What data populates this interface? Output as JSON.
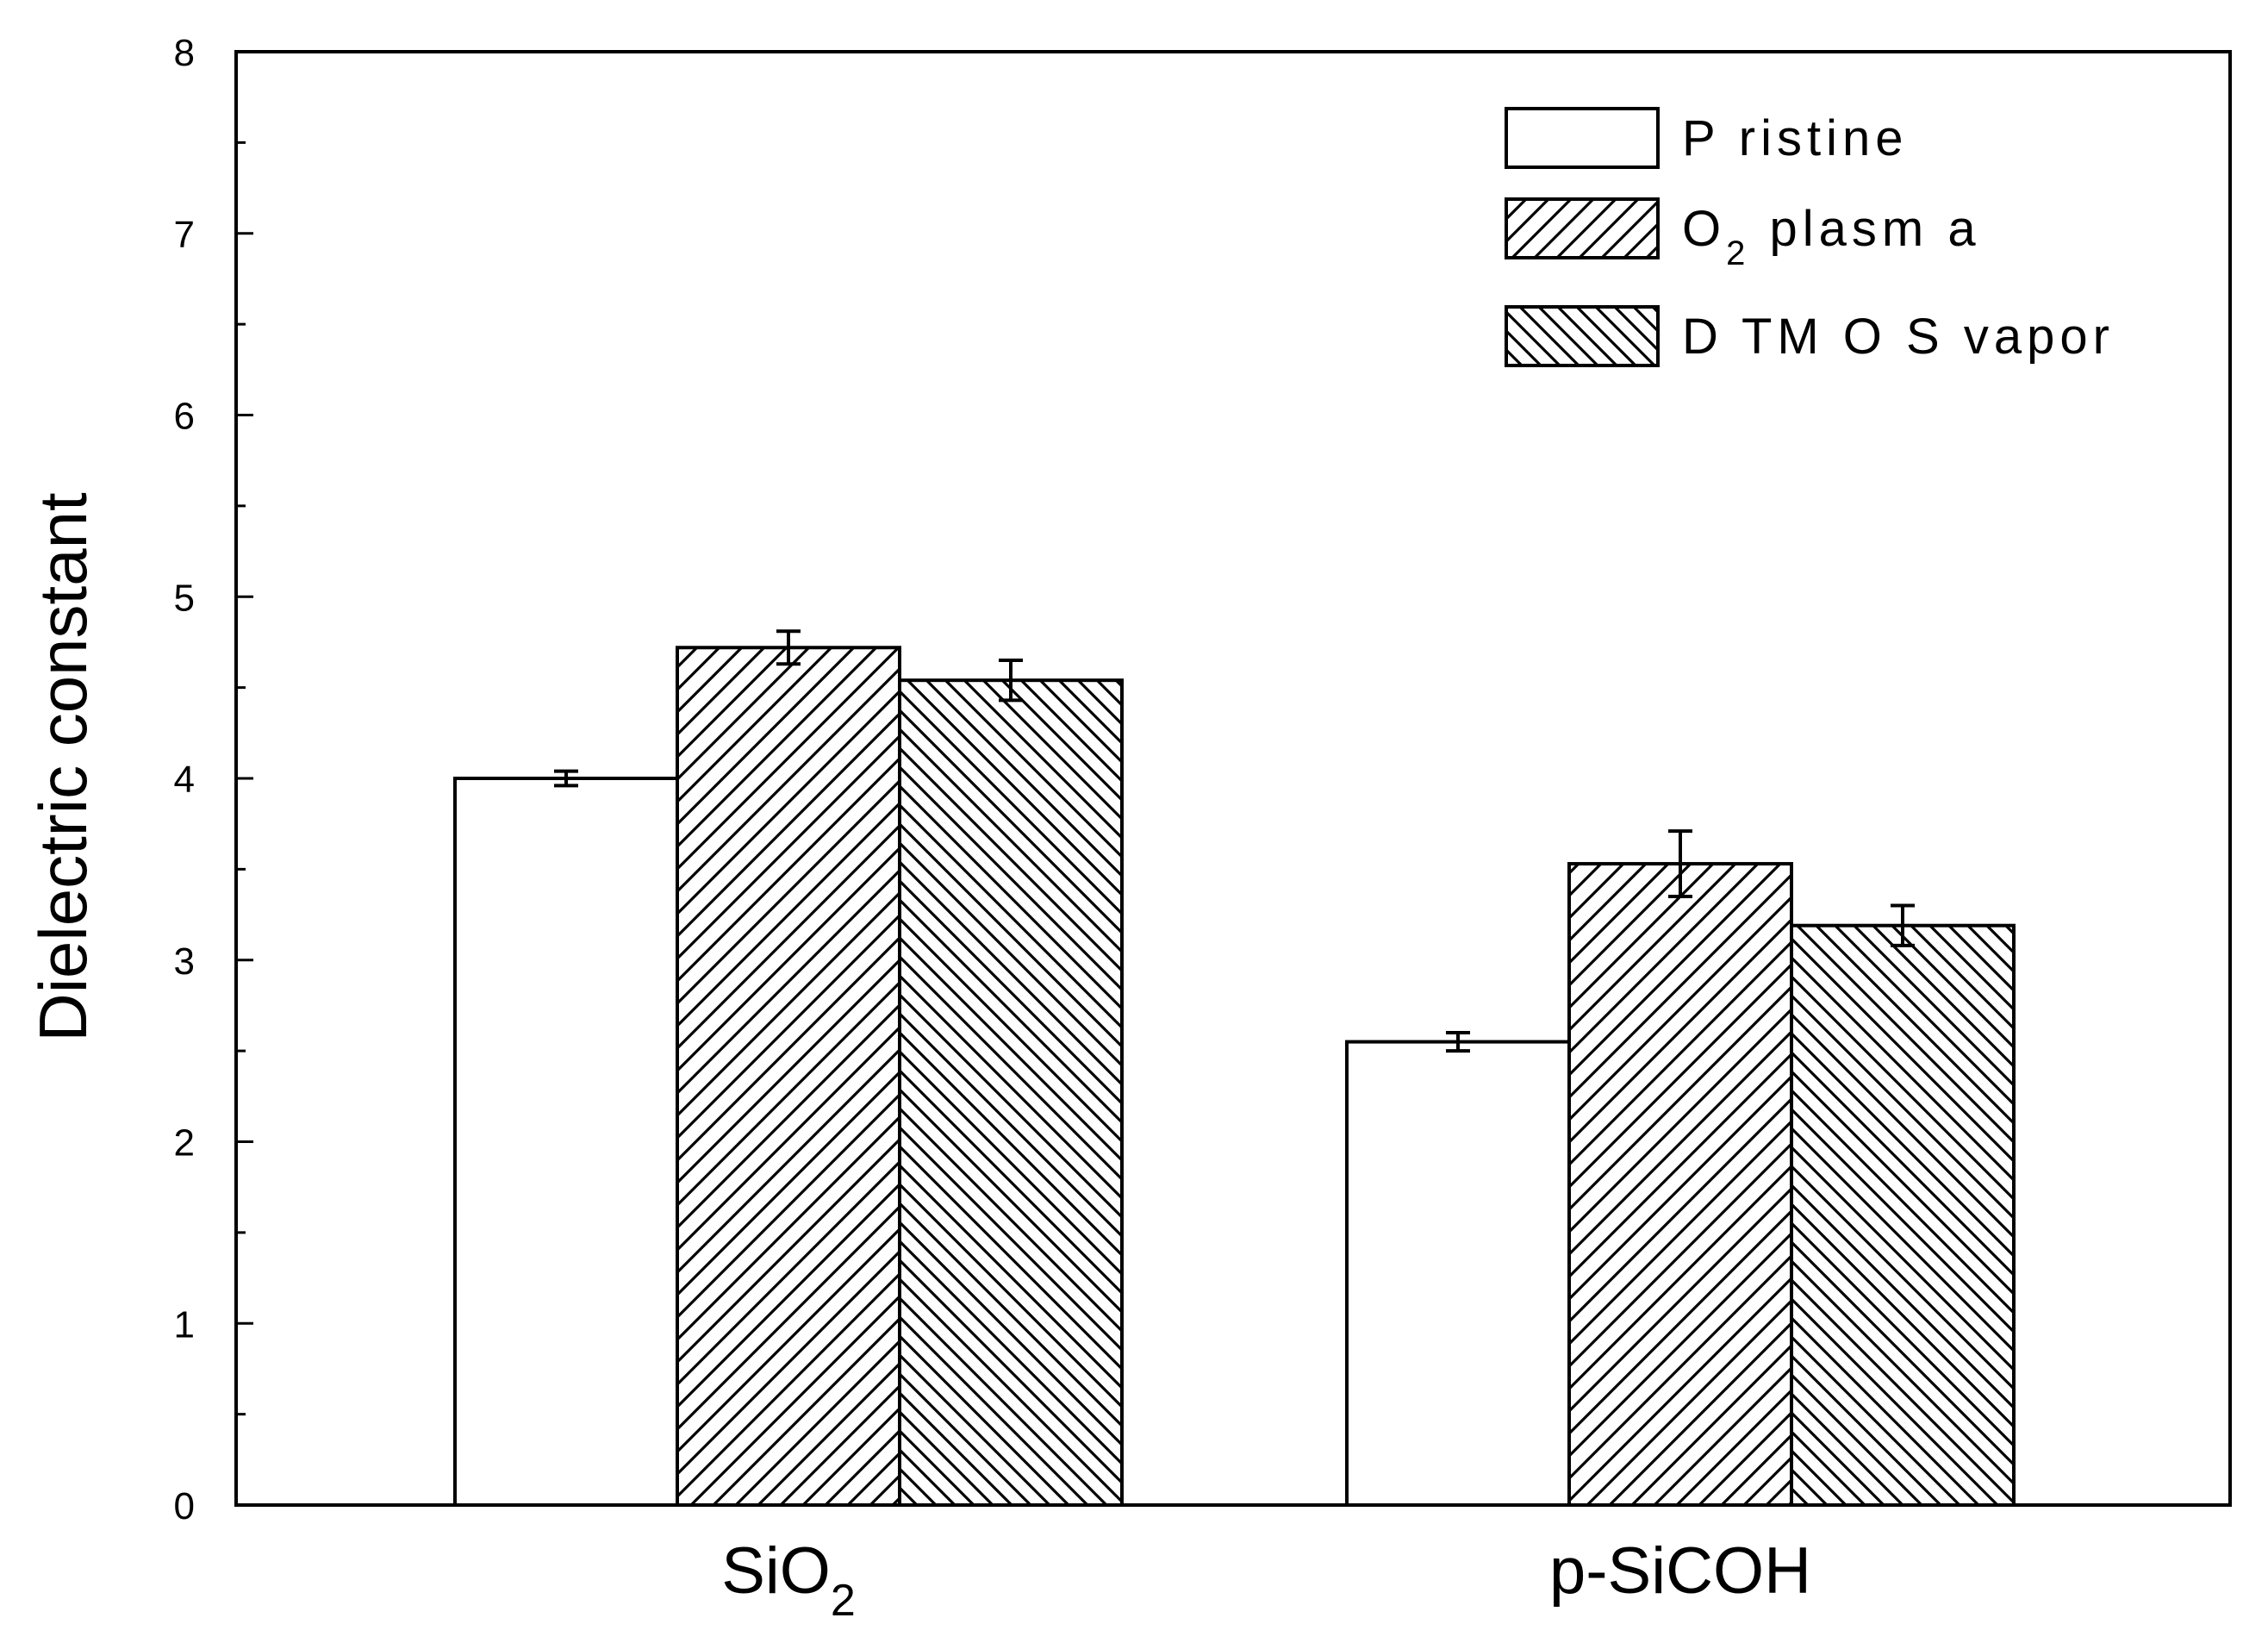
{
  "chart_data": {
    "type": "bar",
    "title": "",
    "xlabel": "",
    "ylabel": "Dielectric constant",
    "ylim": [
      0,
      8
    ],
    "yticks": [
      "0",
      "1",
      "2",
      "3",
      "4",
      "5",
      "6",
      "7",
      "8"
    ],
    "categories": [
      {
        "base": "SiO",
        "sub": "2"
      },
      {
        "base": "p-SiCOH",
        "sub": ""
      }
    ],
    "series": [
      {
        "name": "Pristine",
        "legend_base": "P ristine",
        "legend_sub": "",
        "legend_rest": "",
        "pattern": "none",
        "values": [
          4.0,
          2.55
        ],
        "errors": [
          0.04,
          0.05
        ]
      },
      {
        "name": "O2 plasma",
        "legend_base": "O",
        "legend_sub": "2",
        "legend_rest": " plasm a",
        "pattern": "forward-hatch",
        "values": [
          4.72,
          3.53
        ],
        "errors": [
          0.09,
          0.18
        ]
      },
      {
        "name": "DTMOS vapor",
        "legend_base": "D TM O S  vapor",
        "legend_sub": "",
        "legend_rest": "",
        "pattern": "back-hatch",
        "values": [
          4.54,
          3.19
        ],
        "errors": [
          0.11,
          0.11
        ]
      }
    ],
    "legend_position": "top-right",
    "grid": false,
    "colors": {
      "stroke": "#000000",
      "fill": "#ffffff"
    }
  }
}
